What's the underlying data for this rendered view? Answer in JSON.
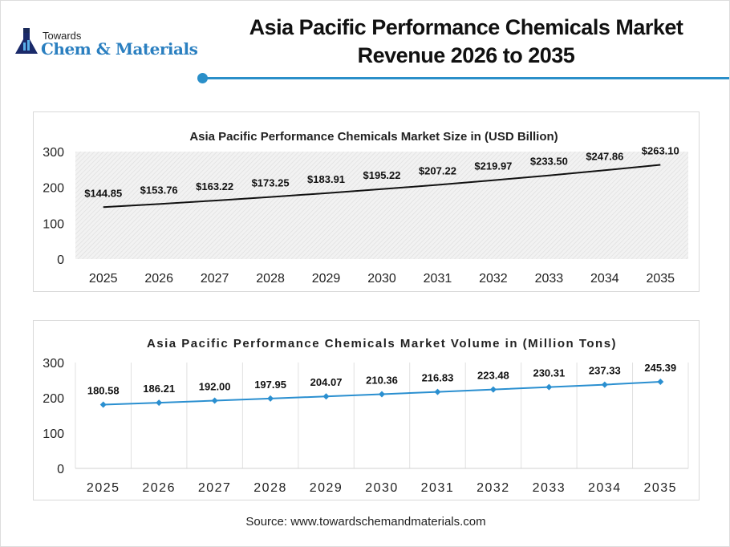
{
  "logo": {
    "line1": "Towards",
    "line2": "Chem & Materials"
  },
  "header": {
    "title_line1": "Asia Pacific Performance Chemicals Market",
    "title_line2": "Revenue 2026 to 2035"
  },
  "accent_color": "#2a8fc9",
  "chart_data": [
    {
      "type": "line",
      "title": "Asia Pacific Performance Chemicals Market Size in (USD Billion)",
      "categories": [
        "2025",
        "2026",
        "2027",
        "2028",
        "2029",
        "2030",
        "2031",
        "2032",
        "2033",
        "2034",
        "2035"
      ],
      "values": [
        144.85,
        153.76,
        163.22,
        173.25,
        183.91,
        195.22,
        207.22,
        219.97,
        233.5,
        247.86,
        263.1
      ],
      "data_labels": [
        "$144.85",
        "$153.76",
        "$163.22",
        "$173.25",
        "$183.91",
        "$195.22",
        "$207.22",
        "$219.97",
        "$233.50",
        "$247.86",
        "$263.10"
      ],
      "yticks": [
        "0",
        "100",
        "200",
        "300"
      ],
      "ylim": [
        0,
        300
      ],
      "grid": false,
      "background": "hatched",
      "line_color": "#111111"
    },
    {
      "type": "line",
      "title": "Asia Pacific Performance Chemicals Market Volume in (Million Tons)",
      "categories": [
        "2025",
        "2026",
        "2027",
        "2028",
        "2029",
        "2030",
        "2031",
        "2032",
        "2033",
        "2034",
        "2035"
      ],
      "values": [
        180.58,
        186.21,
        192.0,
        197.95,
        204.07,
        210.36,
        216.83,
        223.48,
        230.31,
        237.33,
        245.39
      ],
      "data_labels": [
        "180.58",
        "186.21",
        "192.00",
        "197.95",
        "204.07",
        "210.36",
        "216.83",
        "223.48",
        "230.31",
        "237.33",
        "245.39"
      ],
      "yticks": [
        "0",
        "100",
        "200",
        "300"
      ],
      "ylim": [
        0,
        300
      ],
      "grid": "vertical",
      "markers": "diamond",
      "line_color": "#2a8fd0"
    }
  ],
  "source": "Source: www.towardschemandmaterials.com"
}
